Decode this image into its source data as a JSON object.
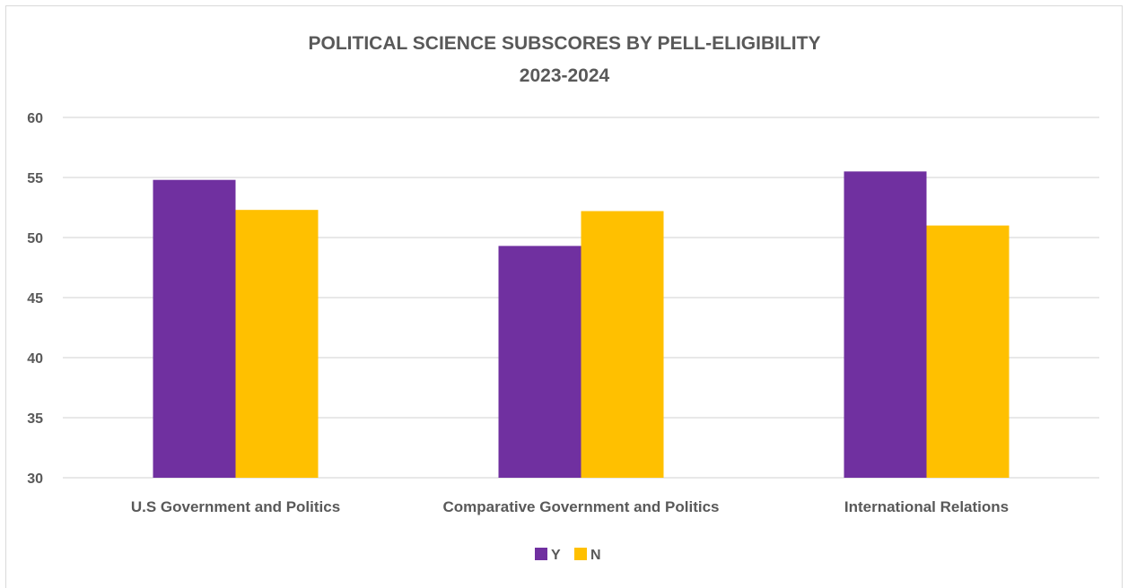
{
  "chart_data": {
    "type": "bar",
    "title": [
      "POLITICAL SCIENCE SUBSCORES BY PELL-ELIGIBILITY",
      "2023-2024"
    ],
    "categories": [
      "U.S Government and Politics",
      "Comparative Government and Politics",
      "International Relations"
    ],
    "series": [
      {
        "name": "Y",
        "values": [
          54.8,
          49.3,
          55.5
        ]
      },
      {
        "name": "N",
        "values": [
          52.3,
          52.2,
          51.0
        ]
      }
    ],
    "ylim": [
      30,
      60
    ],
    "yticks": [
      30,
      35,
      40,
      45,
      50,
      55,
      60
    ],
    "grid": true,
    "legend_position": "bottom",
    "colors": {
      "Y": "#7030a0",
      "N": "#ffc000",
      "grid": "#d9d9d9",
      "text": "#595959"
    }
  }
}
